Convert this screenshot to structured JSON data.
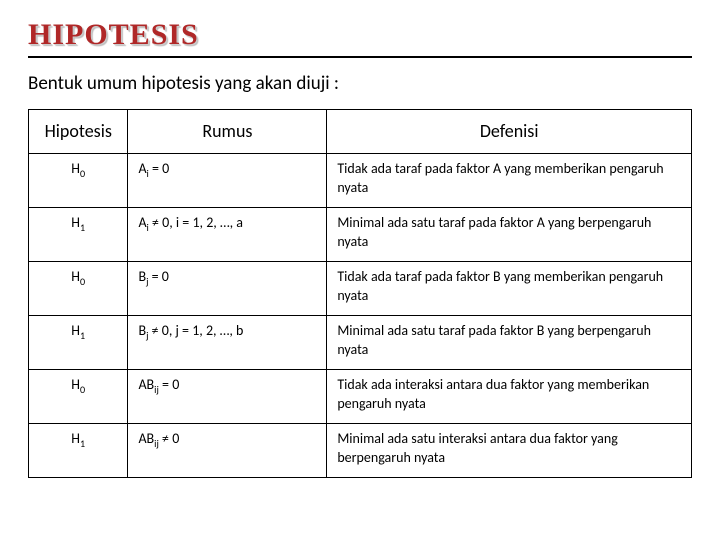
{
  "title": "HIPOTESIS",
  "subtitle": "Bentuk umum hipotesis yang akan diuji :",
  "table": {
    "columns": [
      "Hipotesis",
      "Rumus",
      "Defenisi"
    ],
    "rows": [
      {
        "hipotesis": "H<sub>0</sub>",
        "rumus": "A<sub>i</sub> = 0",
        "defenisi": "Tidak ada taraf pada faktor A yang memberikan pengaruh nyata"
      },
      {
        "hipotesis": "H<sub>1</sub>",
        "rumus": "A<sub>i</sub> ≠ 0, i = 1, 2, …, a",
        "defenisi": "Minimal ada satu taraf pada faktor A yang berpengaruh nyata"
      },
      {
        "hipotesis": "H<sub>0</sub>",
        "rumus": "B<sub>j</sub> = 0",
        "defenisi": "Tidak ada taraf pada faktor B yang memberikan pengaruh nyata"
      },
      {
        "hipotesis": "H<sub>1</sub>",
        "rumus": "B<sub>j</sub> ≠ 0, j = 1, 2, …, b",
        "defenisi": "Minimal ada satu taraf pada faktor B yang berpengaruh nyata"
      },
      {
        "hipotesis": "H<sub>0</sub>",
        "rumus": "AB<sub>ij</sub> = 0",
        "defenisi": "Tidak ada interaksi antara dua faktor yang memberikan pengaruh nyata"
      },
      {
        "hipotesis": "H<sub>1</sub>",
        "rumus": "AB<sub>ij</sub> ≠ 0",
        "defenisi": "Minimal ada satu interaksi antara dua faktor yang berpengaruh nyata"
      }
    ]
  },
  "style": {
    "title_color": "#b02828",
    "underline_color": "#000000",
    "background": "#ffffff",
    "border_color": "#000000",
    "title_fontsize": 30,
    "subtitle_fontsize": 19,
    "header_fontsize": 18,
    "cell_fontsize": 14,
    "col_widths_pct": [
      15,
      30,
      55
    ]
  }
}
